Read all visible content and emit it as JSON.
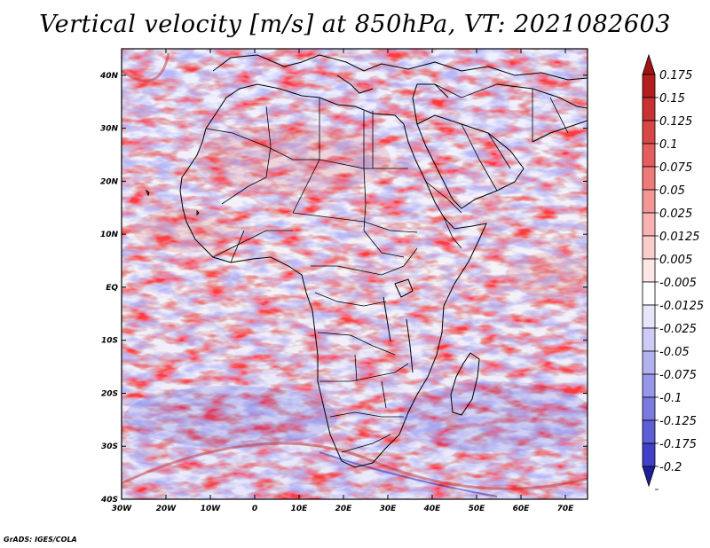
{
  "title": "Vertical velocity [m/s] at 850hPa, VT: 2021082603",
  "credit": "GrADS: IGES/COLA",
  "map": {
    "lon_range": [
      -30,
      75
    ],
    "lat_range": [
      -40,
      45
    ],
    "lat_ticks": [
      {
        "value": 40,
        "label": "40N"
      },
      {
        "value": 30,
        "label": "30N"
      },
      {
        "value": 20,
        "label": "20N"
      },
      {
        "value": 10,
        "label": "10N"
      },
      {
        "value": 0,
        "label": "EQ"
      },
      {
        "value": -10,
        "label": "10S"
      },
      {
        "value": -20,
        "label": "20S"
      },
      {
        "value": -30,
        "label": "30S"
      },
      {
        "value": -40,
        "label": "40S"
      }
    ],
    "lon_ticks": [
      {
        "value": -30,
        "label": "30W"
      },
      {
        "value": -20,
        "label": "20W"
      },
      {
        "value": -10,
        "label": "10W"
      },
      {
        "value": 0,
        "label": "0"
      },
      {
        "value": 10,
        "label": "10E"
      },
      {
        "value": 20,
        "label": "20E"
      },
      {
        "value": 30,
        "label": "30E"
      },
      {
        "value": 40,
        "label": "40E"
      },
      {
        "value": 50,
        "label": "50E"
      },
      {
        "value": 60,
        "label": "60E"
      },
      {
        "value": 70,
        "label": "70E"
      }
    ]
  },
  "colorbar": {
    "levels": [
      {
        "label": "0.175",
        "color": "#b41e1e"
      },
      {
        "label": "0.15",
        "color": "#c83232"
      },
      {
        "label": "0.125",
        "color": "#d84646"
      },
      {
        "label": "0.1",
        "color": "#e45e5e"
      },
      {
        "label": "0.075",
        "color": "#ee7a7a"
      },
      {
        "label": "0.05",
        "color": "#f49696"
      },
      {
        "label": "0.025",
        "color": "#f8b2b2"
      },
      {
        "label": "0.0125",
        "color": "#fbcccc"
      },
      {
        "label": "0.005",
        "color": "#fde6e6"
      },
      {
        "label": "-0.005",
        "color": "#ffffff"
      },
      {
        "label": "-0.0125",
        "color": "#e6e6fa"
      },
      {
        "label": "-0.025",
        "color": "#ccccf6"
      },
      {
        "label": "-0.05",
        "color": "#b2b2f0"
      },
      {
        "label": "-0.075",
        "color": "#9696ea"
      },
      {
        "label": "-0.1",
        "color": "#7a7ae2"
      },
      {
        "label": "-0.125",
        "color": "#5e5ed6"
      },
      {
        "label": "-0.175",
        "color": "#4040c8"
      },
      {
        "label": "-0.2",
        "color": "#2828b4"
      }
    ],
    "top_arrow_color": "#a01414",
    "bottom_arrow_color": "#1e1e9a"
  }
}
